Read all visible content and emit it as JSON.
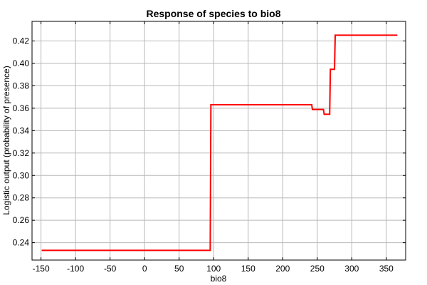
{
  "chart_data": {
    "type": "line",
    "title": "Response of species to bio8",
    "xlabel": "bio8",
    "ylabel": "Logistic output (probability of presence)",
    "xlim": [
      -163,
      378
    ],
    "ylim": [
      0.2245,
      0.4375
    ],
    "xticks": [
      -150,
      -100,
      -50,
      0,
      50,
      100,
      150,
      200,
      250,
      300,
      350
    ],
    "yticks": [
      0.24,
      0.26,
      0.28,
      0.3,
      0.32,
      0.34,
      0.36,
      0.38,
      0.4,
      0.42
    ],
    "ytick_labels": [
      "0.24",
      "0.26",
      "0.28",
      "0.30",
      "0.32",
      "0.34",
      "0.36",
      "0.38",
      "0.40",
      "0.42"
    ],
    "grid": true,
    "series": [
      {
        "color": "#ff0000",
        "x": [
          -149,
          95,
          96,
          242,
          243,
          259,
          260,
          268,
          269,
          275,
          276,
          366
        ],
        "y": [
          0.2332,
          0.2332,
          0.3631,
          0.3631,
          0.3589,
          0.3589,
          0.3546,
          0.3546,
          0.3947,
          0.3947,
          0.4252,
          0.4252
        ]
      }
    ]
  }
}
